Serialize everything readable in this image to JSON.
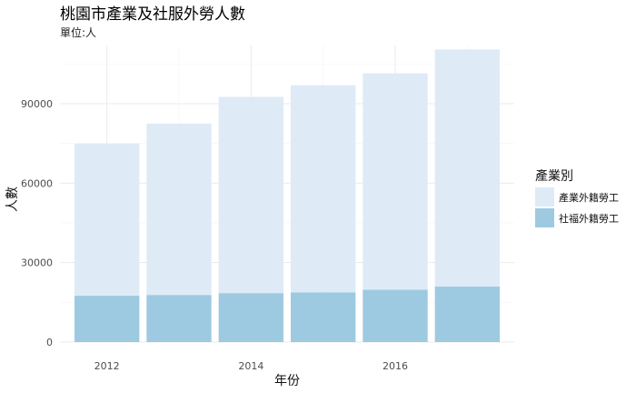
{
  "chart_data": {
    "type": "bar",
    "stacked": true,
    "title": "桃園市產業及社服外勞人數",
    "subtitle": "單位:人",
    "xlabel": "年份",
    "ylabel": "人數",
    "x": [
      2012,
      2013,
      2014,
      2015,
      2016,
      2017
    ],
    "x_ticks": [
      "2012",
      "2014",
      "2016"
    ],
    "y_ticks": [
      "0",
      "30000",
      "60000",
      "90000"
    ],
    "ylim": [
      0,
      112000
    ],
    "grid": true,
    "legend": {
      "title": "產業別",
      "position": "right"
    },
    "series": [
      {
        "name": "社福外籍勞工",
        "color": "#9ecae1",
        "values": [
          17500,
          17800,
          18500,
          18800,
          19800,
          21000
        ]
      },
      {
        "name": "產業外籍勞工",
        "color": "#deebf7",
        "values": [
          57500,
          64700,
          74100,
          78200,
          81700,
          89500
        ]
      }
    ]
  }
}
